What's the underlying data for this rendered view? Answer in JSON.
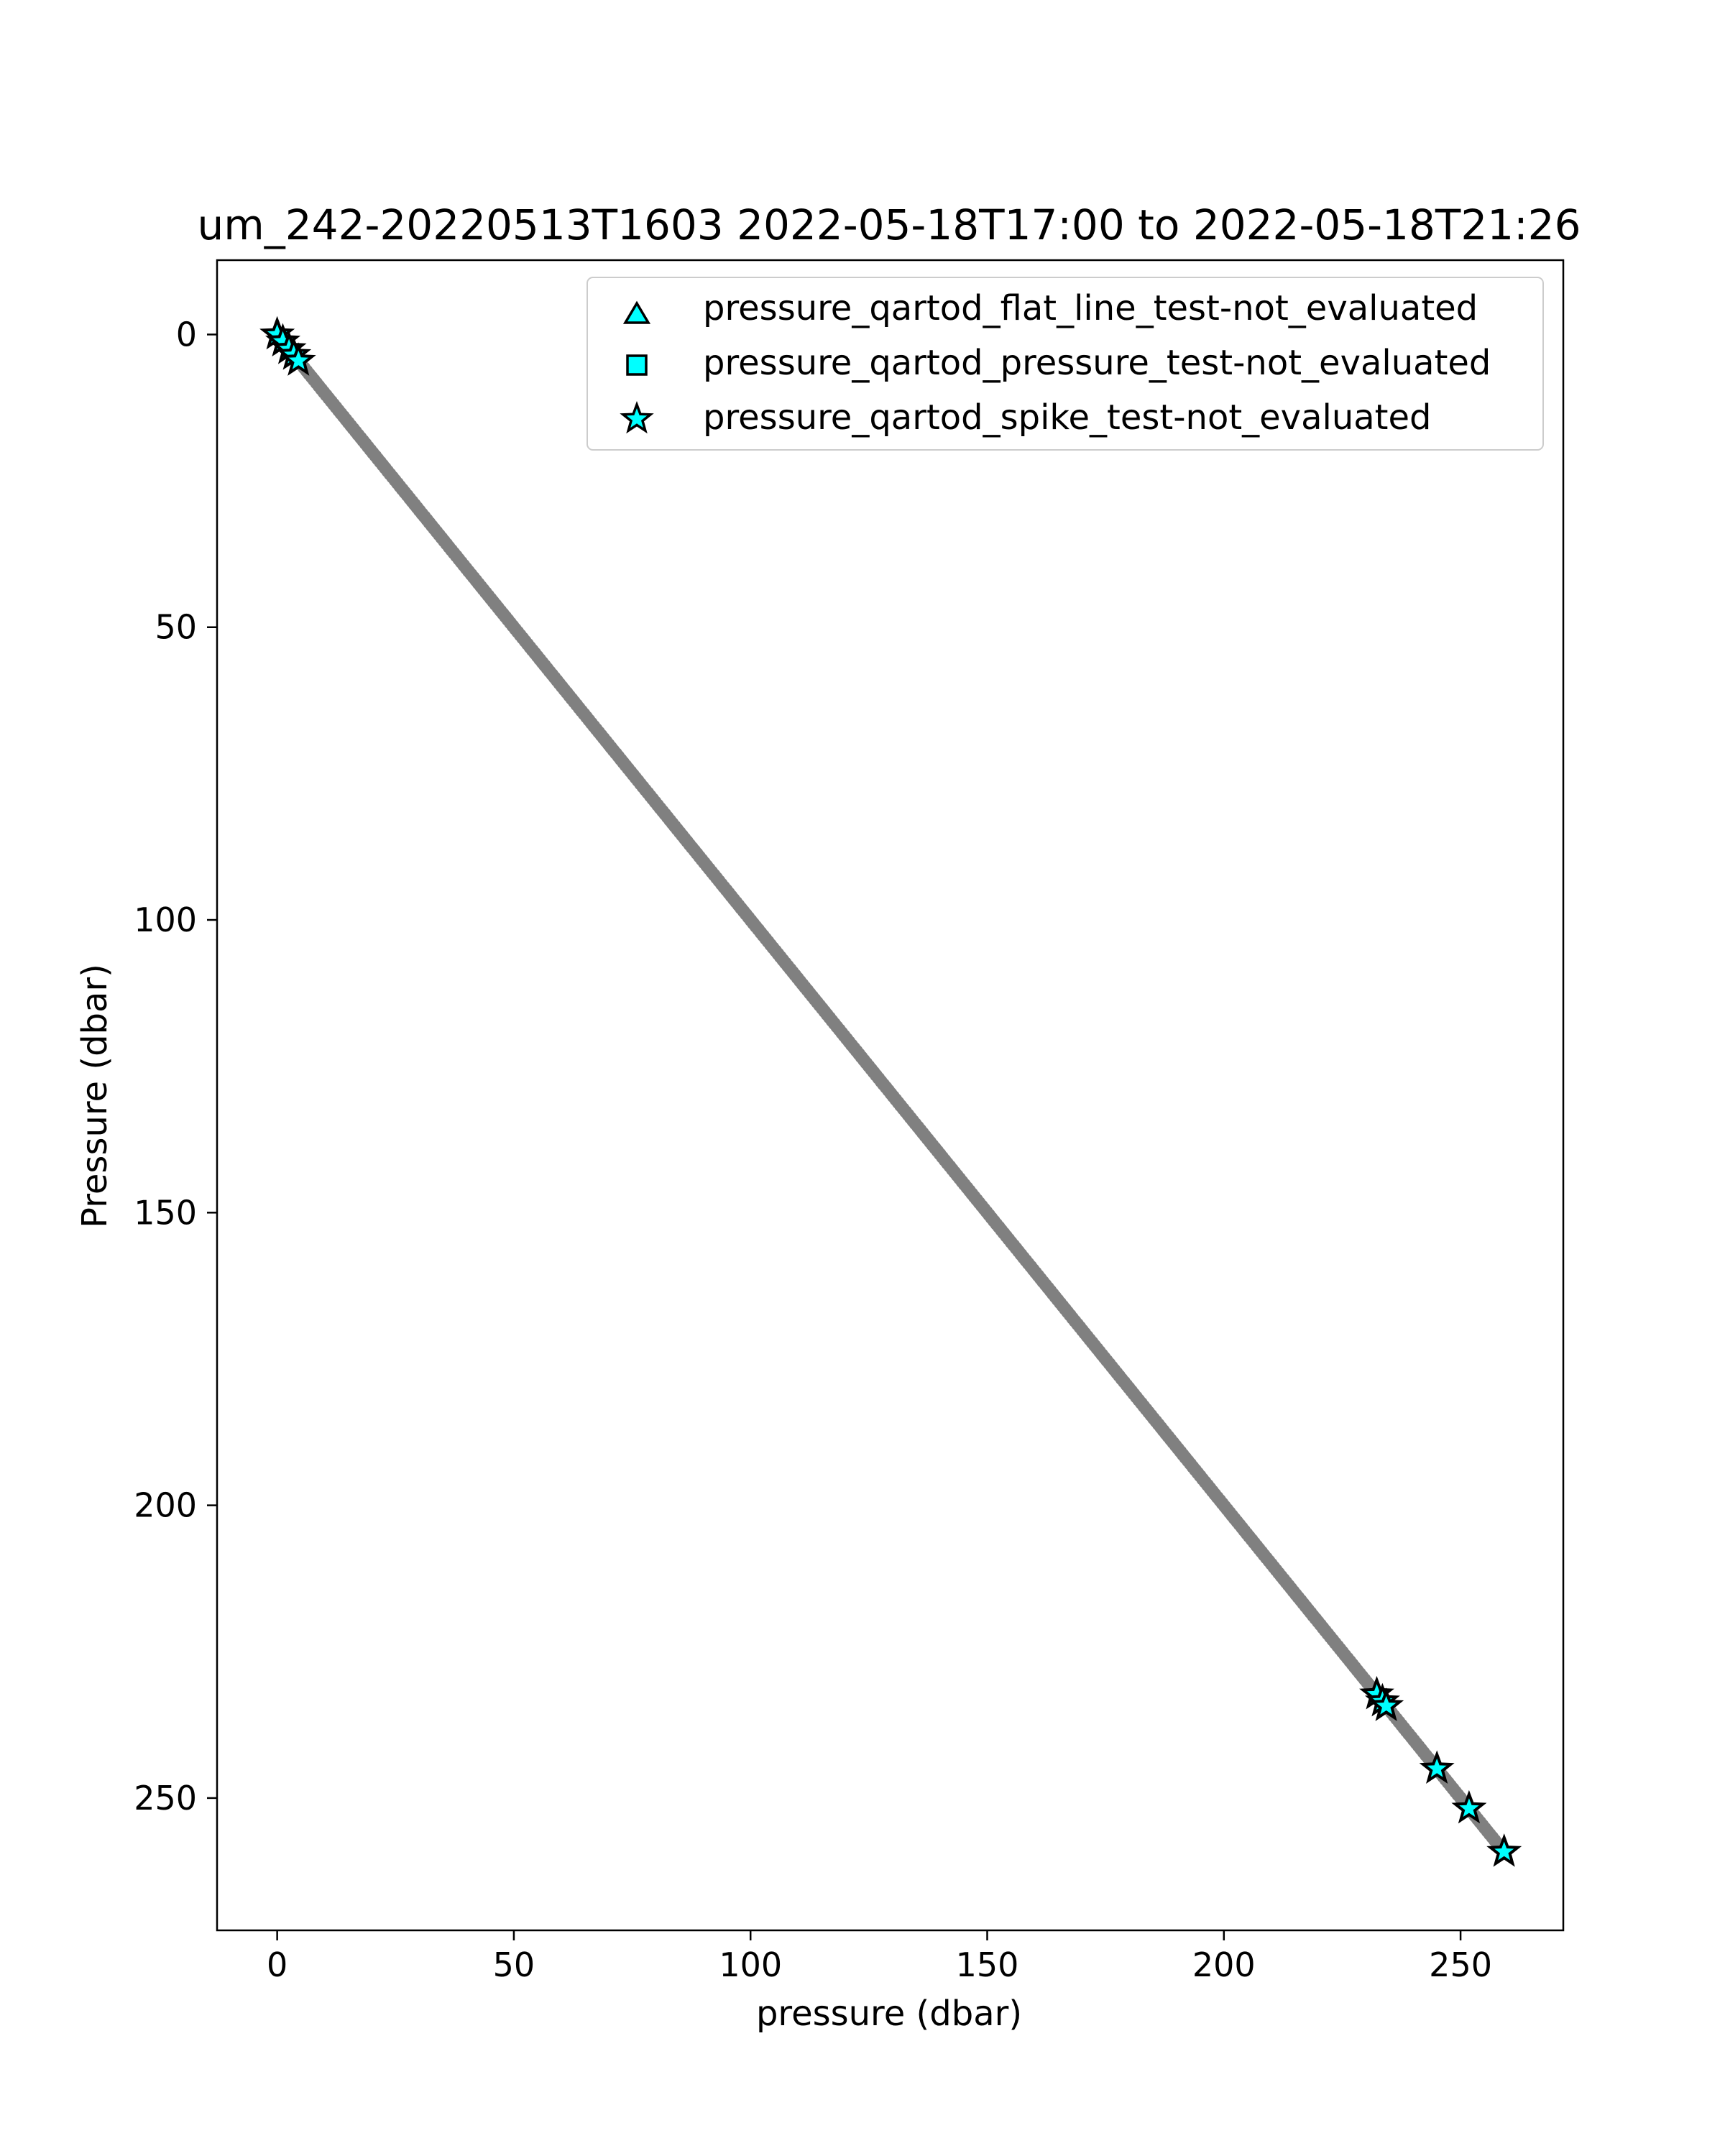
{
  "chart_data": {
    "type": "scatter",
    "title": "um_242-20220513T1603 2022-05-18T17:00 to 2022-05-18T21:26",
    "xlabel": "pressure (dbar)",
    "ylabel": "Pressure (dbar)",
    "xlim": [
      -12.7,
      271.7
    ],
    "ylim": [
      272.6,
      -12.7
    ],
    "y_inverted": true,
    "xticks": [
      0,
      50,
      100,
      150,
      200,
      250
    ],
    "yticks": [
      0,
      50,
      100,
      150,
      200,
      250
    ],
    "grid": false,
    "legend_position": "top-right",
    "colors": {
      "profile": "#808080",
      "flag_fill": "#00ffff",
      "flag_edge": "#000000"
    },
    "series": [
      {
        "marker": "circle",
        "color": "#808080",
        "x_range": [
          0,
          259.3
        ],
        "relation": "y = x",
        "note": "dense profile of pressure vs pressure"
      },
      {
        "name": "pressure_qartod_flat_line_test-not_evaluated",
        "marker": "triangle",
        "x": [],
        "y": []
      },
      {
        "name": "pressure_qartod_pressure_test-not_evaluated",
        "marker": "square",
        "x": [],
        "y": []
      },
      {
        "name": "pressure_qartod_spike_test-not_evaluated",
        "marker": "star",
        "x": [
          0.0,
          1.2,
          2.5,
          3.5,
          4.5,
          232.3,
          233.5,
          234.3,
          245.0,
          251.8,
          259.2
        ],
        "y": [
          0.0,
          1.2,
          2.5,
          3.5,
          4.5,
          232.3,
          233.5,
          234.3,
          245.0,
          251.8,
          259.2
        ]
      }
    ]
  }
}
